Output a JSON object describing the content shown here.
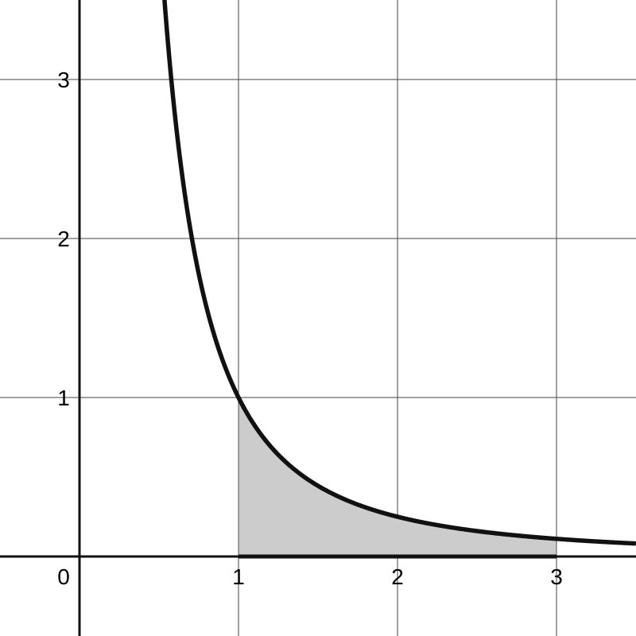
{
  "chart_data": {
    "type": "line",
    "function": "1/x^2",
    "xlim": [
      -0.5,
      3.5
    ],
    "ylim": [
      -0.5,
      3.5
    ],
    "grid": true,
    "x_ticks": [
      1,
      2,
      3
    ],
    "y_ticks": [
      1,
      2,
      3
    ],
    "origin_label": "0",
    "x_tick_labels": [
      "1",
      "2",
      "3"
    ],
    "y_tick_labels": [
      "1",
      "2",
      "3"
    ],
    "shaded_region": {
      "from": 1,
      "to": 3,
      "fill": "#cccccc"
    },
    "series": [
      {
        "x": [
          0.5345,
          0.6,
          0.7,
          0.8,
          1,
          1.5,
          2,
          2.5,
          3,
          3.5
        ],
        "y": [
          3.5,
          2.778,
          2.041,
          1.5625,
          1,
          0.444,
          0.25,
          0.16,
          0.111,
          0.0816
        ],
        "color": "#111111"
      }
    ]
  }
}
